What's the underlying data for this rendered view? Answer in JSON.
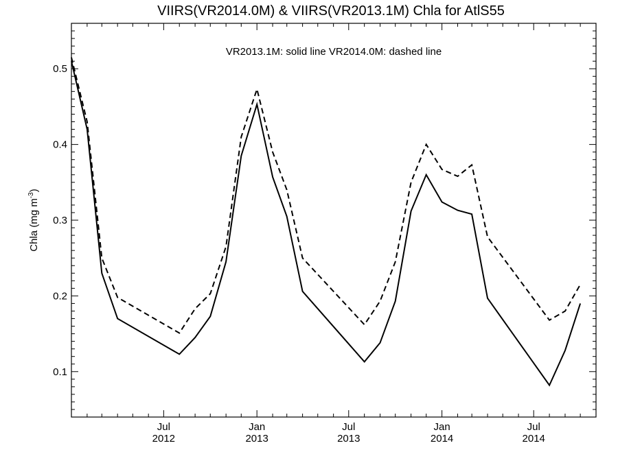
{
  "chart_data": {
    "type": "line",
    "title": "VIIRS(VR2014.0M) & VIIRS(VR2013.1M)  Chla for AtlS55",
    "annotation": "VR2013.1M: solid line   VR2014.0M: dashed line",
    "ylabel": "Chla (mg m",
    "ylabel_sup": "-3",
    "ylabel_end": ")",
    "ylim": [
      0.04,
      0.56
    ],
    "xlim": [
      "2012-01-01",
      "2014-11-01"
    ],
    "grid": false,
    "y_ticks": [
      {
        "value": 0.1,
        "label": "0.1"
      },
      {
        "value": 0.2,
        "label": "0.2"
      },
      {
        "value": 0.3,
        "label": "0.3"
      },
      {
        "value": 0.4,
        "label": "0.4"
      },
      {
        "value": 0.5,
        "label": "0.5"
      }
    ],
    "x_ticks": [
      {
        "date": "2012-07-01",
        "month": "Jul",
        "year": "2012"
      },
      {
        "date": "2013-01-01",
        "month": "Jan",
        "year": "2013"
      },
      {
        "date": "2013-07-01",
        "month": "Jul",
        "year": "2013"
      },
      {
        "date": "2014-01-01",
        "month": "Jan",
        "year": "2014"
      },
      {
        "date": "2014-07-01",
        "month": "Jul",
        "year": "2014"
      }
    ],
    "series": [
      {
        "name": "VR2013.1M",
        "style": "solid",
        "color": "#000000",
        "points": [
          [
            "2012-01-01",
            0.51
          ],
          [
            "2012-02-01",
            0.42
          ],
          [
            "2012-03-01",
            0.23
          ],
          [
            "2012-04-01",
            0.17
          ],
          [
            "2012-08-01",
            0.123
          ],
          [
            "2012-09-01",
            0.145
          ],
          [
            "2012-10-01",
            0.173
          ],
          [
            "2012-11-01",
            0.245
          ],
          [
            "2012-12-01",
            0.385
          ],
          [
            "2013-01-01",
            0.453
          ],
          [
            "2013-02-01",
            0.357
          ],
          [
            "2013-03-01",
            0.305
          ],
          [
            "2013-04-01",
            0.206
          ],
          [
            "2013-08-01",
            0.113
          ],
          [
            "2013-09-01",
            0.138
          ],
          [
            "2013-10-01",
            0.193
          ],
          [
            "2013-11-01",
            0.312
          ],
          [
            "2013-12-01",
            0.36
          ],
          [
            "2014-01-01",
            0.324
          ],
          [
            "2014-02-01",
            0.313
          ],
          [
            "2014-03-01",
            0.308
          ],
          [
            "2014-04-01",
            0.197
          ],
          [
            "2014-08-01",
            0.082
          ],
          [
            "2014-09-01",
            0.128
          ],
          [
            "2014-10-01",
            0.19
          ]
        ]
      },
      {
        "name": "VR2014.0M",
        "style": "dashed",
        "color": "#000000",
        "points": [
          [
            "2012-01-01",
            0.515
          ],
          [
            "2012-02-01",
            0.43
          ],
          [
            "2012-03-01",
            0.25
          ],
          [
            "2012-04-01",
            0.198
          ],
          [
            "2012-08-01",
            0.151
          ],
          [
            "2012-09-01",
            0.183
          ],
          [
            "2012-10-01",
            0.203
          ],
          [
            "2012-11-01",
            0.265
          ],
          [
            "2012-12-01",
            0.41
          ],
          [
            "2013-01-01",
            0.473
          ],
          [
            "2013-02-01",
            0.39
          ],
          [
            "2013-03-01",
            0.34
          ],
          [
            "2013-04-01",
            0.25
          ],
          [
            "2013-08-01",
            0.162
          ],
          [
            "2013-09-01",
            0.193
          ],
          [
            "2013-10-01",
            0.245
          ],
          [
            "2013-11-01",
            0.35
          ],
          [
            "2013-12-01",
            0.4
          ],
          [
            "2014-01-01",
            0.367
          ],
          [
            "2014-02-01",
            0.358
          ],
          [
            "2014-03-01",
            0.373
          ],
          [
            "2014-04-01",
            0.278
          ],
          [
            "2014-08-01",
            0.168
          ],
          [
            "2014-09-01",
            0.18
          ],
          [
            "2014-10-01",
            0.215
          ]
        ]
      }
    ]
  }
}
